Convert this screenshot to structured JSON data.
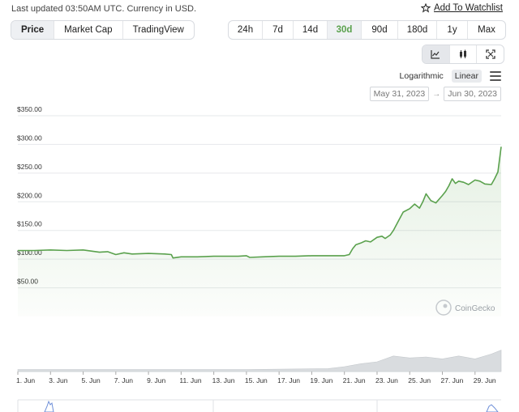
{
  "header": {
    "last_updated": "Last updated 03:50AM UTC. Currency in USD.",
    "watchlist_label": "Add To Watchlist"
  },
  "view_tabs": [
    {
      "label": "Price",
      "active": true
    },
    {
      "label": "Market Cap",
      "active": false
    },
    {
      "label": "TradingView",
      "active": false
    }
  ],
  "range_tabs": [
    {
      "label": "24h",
      "active": false
    },
    {
      "label": "7d",
      "active": false
    },
    {
      "label": "14d",
      "active": false
    },
    {
      "label": "30d",
      "active": true
    },
    {
      "label": "90d",
      "active": false
    },
    {
      "label": "180d",
      "active": false
    },
    {
      "label": "1y",
      "active": false
    },
    {
      "label": "Max",
      "active": false
    }
  ],
  "chart_type_buttons": [
    {
      "icon": "line-chart-icon",
      "active": true
    },
    {
      "icon": "candlestick-icon",
      "active": false
    },
    {
      "icon": "expand-icon",
      "active": false
    }
  ],
  "scale": {
    "options": [
      "Logarithmic",
      "Linear"
    ],
    "active": "Linear"
  },
  "date_range": {
    "from": "May 31, 2023",
    "to": "Jun 30, 2023"
  },
  "watermark": "CoinGecko",
  "colors": {
    "line": "#5aa14d",
    "accent": "#5aa14d"
  },
  "chart_data": {
    "type": "area",
    "title": "",
    "xlabel": "",
    "ylabel": "",
    "ylim": [
      0,
      350
    ],
    "xlim": [
      1,
      30.6
    ],
    "y_ticks": [
      350,
      300,
      250,
      200,
      150,
      100,
      50
    ],
    "y_tick_labels": [
      "$350.00",
      "$300.00",
      "$250.00",
      "$200.00",
      "$150.00",
      "$100.00",
      "$50.00"
    ],
    "x_ticks": [
      1,
      3,
      5,
      7,
      9,
      11,
      13,
      15,
      17,
      19,
      21,
      23,
      25,
      27,
      29
    ],
    "x_tick_labels": [
      "1. Jun",
      "3. Jun",
      "5. Jun",
      "7. Jun",
      "9. Jun",
      "11. Jun",
      "13. Jun",
      "15. Jun",
      "17. Jun",
      "19. Jun",
      "21. Jun",
      "23. Jun",
      "25. Jun",
      "27. Jun",
      "29. Jun"
    ],
    "grid": true,
    "series": [
      {
        "x": [
          1,
          2,
          3,
          4,
          5,
          5.5,
          6,
          6.5,
          7,
          7.5,
          8,
          9,
          10,
          10.4,
          10.5,
          11,
          12,
          13,
          14,
          14.5,
          15,
          15.2,
          16,
          17,
          18,
          19,
          20,
          21,
          21.3,
          21.5,
          21.7,
          22,
          22.3,
          22.6,
          23,
          23.3,
          23.5,
          23.8,
          24,
          24.3,
          24.6,
          25,
          25.3,
          25.6,
          25.8,
          26,
          26.3,
          26.6,
          27,
          27.2,
          27.4,
          27.6,
          27.8,
          28,
          28.3,
          28.6,
          29,
          29.3,
          29.6,
          30,
          30.2,
          30.4,
          30.6
        ],
        "values": [
          115,
          115,
          116,
          115,
          116,
          114,
          112,
          113,
          108,
          111,
          109,
          110,
          109,
          108,
          102,
          104,
          104,
          105,
          105,
          105,
          106,
          103,
          104,
          105,
          105,
          106,
          106,
          106,
          108,
          118,
          125,
          128,
          132,
          130,
          138,
          140,
          136,
          142,
          150,
          166,
          182,
          188,
          196,
          189,
          200,
          214,
          202,
          198,
          211,
          218,
          228,
          240,
          232,
          236,
          234,
          230,
          238,
          236,
          231,
          230,
          240,
          252,
          296
        ]
      }
    ],
    "volume": {
      "x": [
        1,
        5,
        10,
        15,
        20,
        21,
        22,
        23,
        24,
        25,
        26,
        27,
        28,
        29,
        30,
        30.6
      ],
      "values": [
        2,
        2,
        2,
        2,
        3,
        5,
        8,
        10,
        16,
        14,
        15,
        13,
        16,
        13,
        18,
        22
      ]
    }
  }
}
